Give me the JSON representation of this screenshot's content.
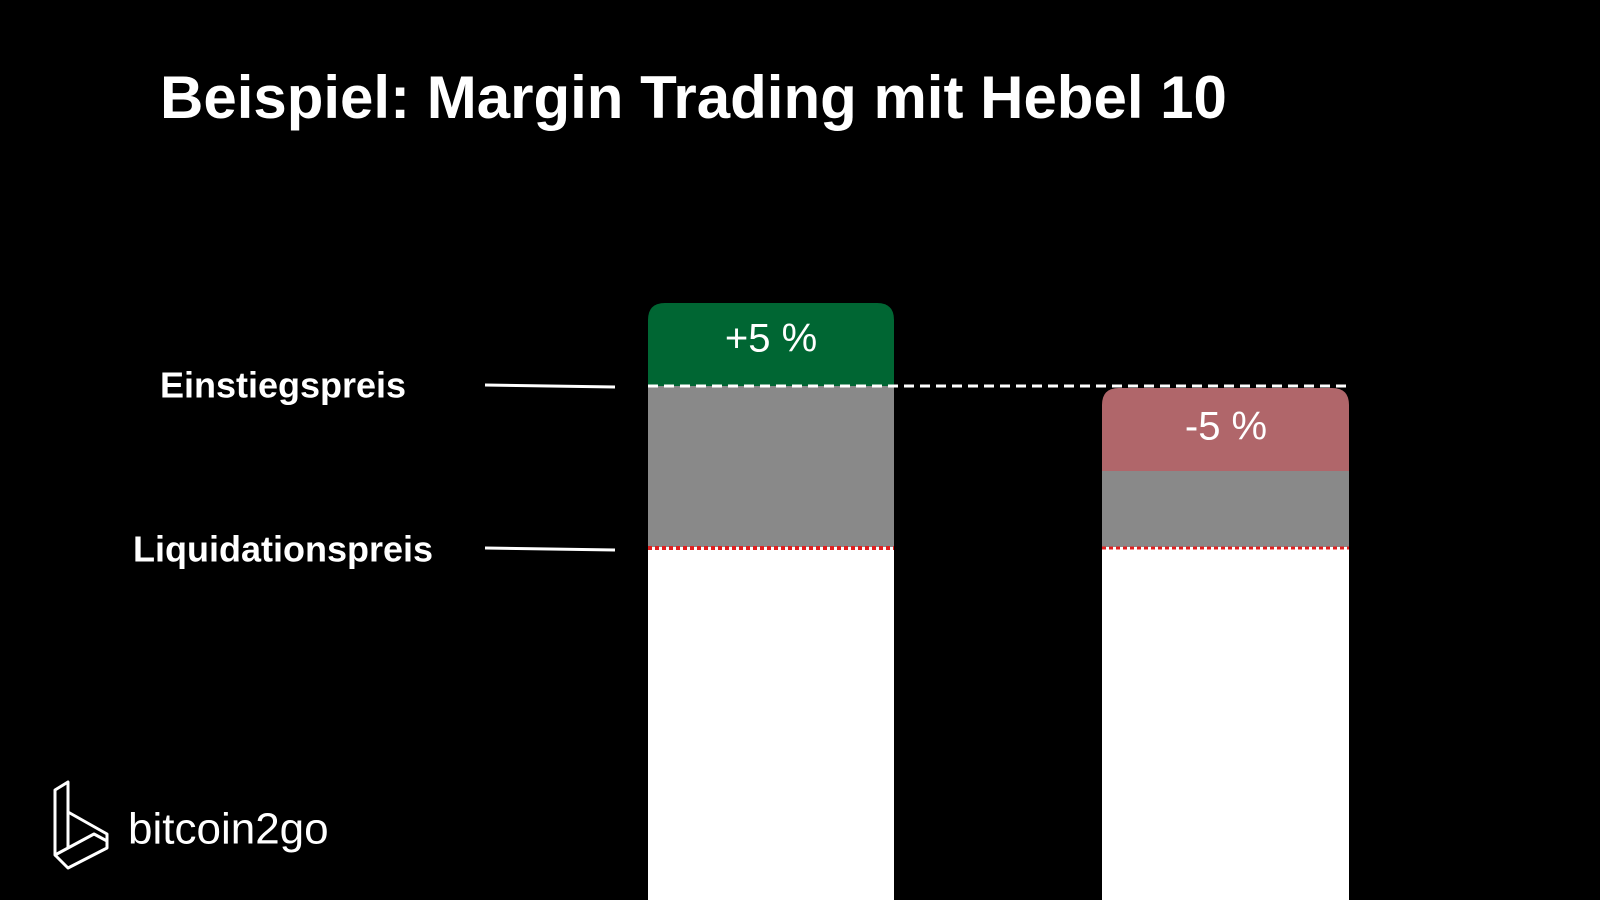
{
  "title": "Beispiel: Margin Trading mit Hebel 10",
  "levels": {
    "entry": "Einstiegspreis",
    "liquidation": "Liquidationspreis"
  },
  "bars": [
    {
      "label": "+5 %"
    },
    {
      "label": "-5 %"
    }
  ],
  "logo": {
    "text": "bitcoin2go"
  }
}
